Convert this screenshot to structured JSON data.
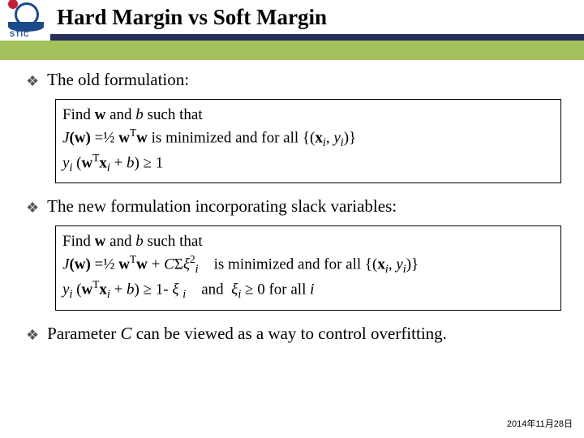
{
  "header": {
    "title": "Hard Margin vs Soft Margin",
    "logo_text": "STIC",
    "colors": {
      "navy": "#252f5a",
      "green": "#a4c15b",
      "logo_blue": "#1a4a8a",
      "logo_red": "#c41e3a"
    }
  },
  "bullets": {
    "b1": "The old formulation:",
    "b2": "The new formulation incorporating slack variables:",
    "b3_pre": "Parameter ",
    "b3_var": "C",
    "b3_post": " can be viewed as a way to control overfitting."
  },
  "box1": {
    "line1_pre": "Find ",
    "line1_w": "w",
    "line1_mid": " and ",
    "line1_b": "b",
    "line1_post": " such that",
    "line2_J": "J",
    "line2_paren_w": "(w)",
    "line2_eq": " =½ ",
    "line2_wTw_w1": "w",
    "line2_T": "T",
    "line2_wTw_w2": "w",
    "line2_mid": "  is minimized and for all ",
    "line2_set_open": "{(",
    "line2_xi": "x",
    "line2_i1": "i",
    "line2_comma": ", ",
    "line2_yi": "y",
    "line2_i2": "i",
    "line2_set_close": ")}",
    "line3_yi": "y",
    "line3_i": "i",
    "line3_open": " (",
    "line3_w": "w",
    "line3_T": "T",
    "line3_x": "x",
    "line3_xi_i": "i",
    "line3_plus": " + ",
    "line3_b": "b",
    "line3_close": ") ≥ 1"
  },
  "box2": {
    "line1_pre": "Find ",
    "line1_w": "w",
    "line1_mid": " and ",
    "line1_b": "b",
    "line1_post": " such that",
    "line2_J": "J",
    "line2_paren_w": "(w)",
    "line2_eq": " =½ ",
    "line2_w1": "w",
    "line2_T": "T",
    "line2_w2": "w",
    "line2_plus": " + ",
    "line2_C": "C",
    "line2_sigma": "Σ",
    "line2_xi": "ξ",
    "line2_2": "2",
    "line2_i": "i",
    "line2_mid": "    is minimized and for all ",
    "line2_set_open": "{(",
    "line2_bx": "x",
    "line2_bi1": "i",
    "line2_comma": ", ",
    "line2_by": "y",
    "line2_bi2": "i",
    "line2_set_close": ")}",
    "line3_yi": "y",
    "line3_i": "i",
    "line3_open": " (",
    "line3_w": "w",
    "line3_T": "T",
    "line3_x": "x",
    "line3_xi_i": "i",
    "line3_plus": " + ",
    "line3_b": "b",
    "line3_close": ") ≥ 1- ",
    "line3_xi": "ξ ",
    "line3_xisub": "i",
    "line3_and": "    and  ",
    "line3_xi2": "ξ",
    "line3_xi2sub": "i",
    "line3_geq": " ≥ 0 for all ",
    "line3_lasti": "i"
  },
  "footer": {
    "date": "2014年11月28日"
  }
}
